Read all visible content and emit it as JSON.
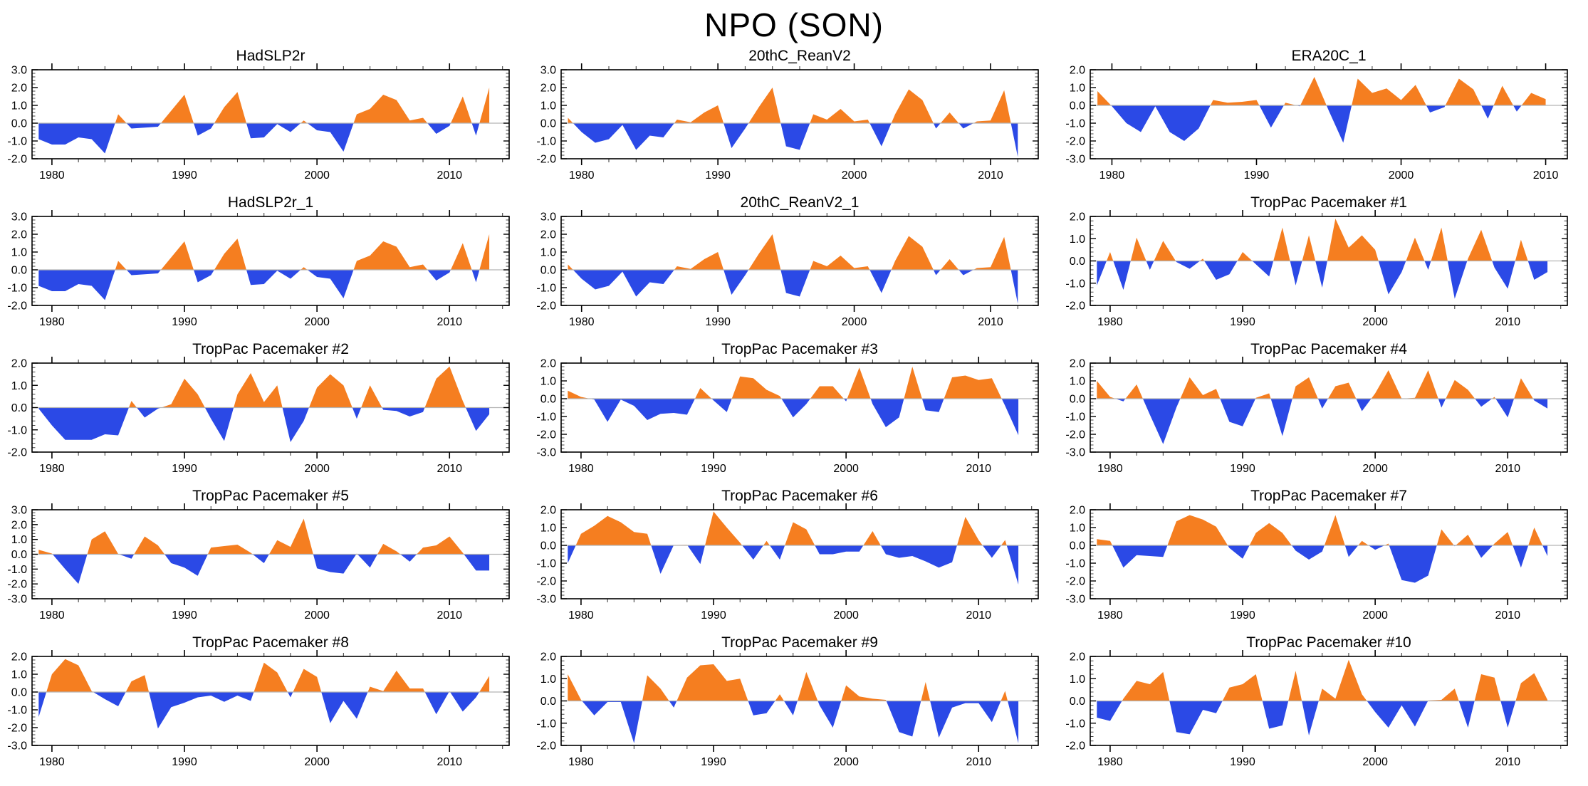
{
  "title": "NPO (SON)",
  "colors": {
    "positive_fill": "#F57E20",
    "negative_fill": "#2B49E6",
    "zero_line": "#B4B4B4",
    "frame": "#000000",
    "minor_tick": "#444444"
  },
  "chart_data": [
    {
      "type": "area",
      "title": "HadSLP2r",
      "xlabel": "",
      "ylabel": "",
      "x_start": 1979,
      "xlim": [
        1978.5,
        2014.5
      ],
      "ylim": [
        -2,
        3
      ],
      "yticks": [
        -2,
        -1,
        0,
        1,
        2,
        3
      ],
      "ytick_labels": [
        "-2.0",
        "-1.0",
        "0.0",
        "1.0",
        "2.0",
        "3.0"
      ],
      "xticks": [
        1980,
        1990,
        2000,
        2010
      ],
      "xtick_labels": [
        "1980",
        "1990",
        "2000",
        "2010"
      ],
      "xminor_interval": 2,
      "yminor_interval": 0.2,
      "grid": false,
      "values": [
        -0.9,
        -1.2,
        -1.2,
        -0.8,
        -0.9,
        -1.7,
        0.5,
        -0.3,
        -0.25,
        -0.2,
        0.7,
        1.6,
        -0.7,
        -0.3,
        0.9,
        1.75,
        -0.85,
        -0.8,
        -0.05,
        -0.5,
        0.15,
        -0.4,
        -0.5,
        -1.6,
        0.5,
        0.8,
        1.6,
        1.3,
        0.15,
        0.3,
        -0.6,
        -0.15,
        1.5,
        -0.7,
        2.0
      ]
    },
    {
      "type": "area",
      "title": "20thC_ReanV2",
      "xlabel": "",
      "ylabel": "",
      "x_start": 1979,
      "xlim": [
        1978.5,
        2013.5
      ],
      "ylim": [
        -2,
        3
      ],
      "yticks": [
        -2,
        -1,
        0,
        1,
        2,
        3
      ],
      "ytick_labels": [
        "-2.0",
        "-1.0",
        "0.0",
        "1.0",
        "2.0",
        "3.0"
      ],
      "xticks": [
        1980,
        1990,
        2000,
        2010
      ],
      "xtick_labels": [
        "1980",
        "1990",
        "2000",
        "2010"
      ],
      "xminor_interval": 2,
      "yminor_interval": 0.2,
      "grid": false,
      "values": [
        0.3,
        -0.5,
        -1.1,
        -0.9,
        -0.1,
        -1.5,
        -0.7,
        -0.8,
        0.2,
        0.05,
        0.6,
        1.0,
        -1.4,
        -0.3,
        0.9,
        2.0,
        -1.3,
        -1.5,
        0.5,
        0.2,
        0.8,
        0.1,
        0.2,
        -1.3,
        0.5,
        1.9,
        1.3,
        -0.3,
        0.6,
        -0.3,
        0.1,
        0.15,
        1.85,
        -1.9
      ]
    },
    {
      "type": "area",
      "title": "ERA20C_1",
      "xlabel": "",
      "ylabel": "",
      "x_start": 1979,
      "xlim": [
        1978.5,
        2011.5
      ],
      "ylim": [
        -3,
        2
      ],
      "yticks": [
        -3,
        -2,
        -1,
        0,
        1,
        2
      ],
      "ytick_labels": [
        "-3.0",
        "-2.0",
        "-1.0",
        "0.0",
        "1.0",
        "2.0"
      ],
      "xticks": [
        1980,
        1990,
        2000,
        2010
      ],
      "xtick_labels": [
        "1980",
        "1990",
        "2000",
        "2010"
      ],
      "xminor_interval": 2,
      "yminor_interval": 0.2,
      "grid": false,
      "values": [
        0.8,
        -0.05,
        -1.0,
        -1.5,
        -0.05,
        -1.5,
        -2.0,
        -1.3,
        0.3,
        0.15,
        0.2,
        0.3,
        -1.25,
        0.15,
        -0.05,
        1.6,
        -0.3,
        -2.1,
        1.5,
        0.7,
        0.95,
        0.3,
        1.15,
        -0.4,
        -0.1,
        1.5,
        0.9,
        -0.75,
        1.1,
        -0.35,
        0.7,
        0.35
      ]
    },
    {
      "type": "area",
      "title": "HadSLP2r_1",
      "xlabel": "",
      "ylabel": "",
      "x_start": 1979,
      "xlim": [
        1978.5,
        2014.5
      ],
      "ylim": [
        -2,
        3
      ],
      "yticks": [
        -2,
        -1,
        0,
        1,
        2,
        3
      ],
      "ytick_labels": [
        "-2.0",
        "-1.0",
        "0.0",
        "1.0",
        "2.0",
        "3.0"
      ],
      "xticks": [
        1980,
        1990,
        2000,
        2010
      ],
      "xtick_labels": [
        "1980",
        "1990",
        "2000",
        "2010"
      ],
      "xminor_interval": 2,
      "yminor_interval": 0.2,
      "grid": false,
      "values": [
        -0.9,
        -1.2,
        -1.2,
        -0.8,
        -0.9,
        -1.7,
        0.5,
        -0.3,
        -0.25,
        -0.2,
        0.7,
        1.6,
        -0.7,
        -0.3,
        0.9,
        1.75,
        -0.85,
        -0.8,
        -0.05,
        -0.5,
        0.15,
        -0.4,
        -0.5,
        -1.6,
        0.5,
        0.8,
        1.6,
        1.3,
        0.15,
        0.3,
        -0.6,
        -0.15,
        1.5,
        -0.7,
        2.0
      ]
    },
    {
      "type": "area",
      "title": "20thC_ReanV2_1",
      "xlabel": "",
      "ylabel": "",
      "x_start": 1979,
      "xlim": [
        1978.5,
        2013.5
      ],
      "ylim": [
        -2,
        3
      ],
      "yticks": [
        -2,
        -1,
        0,
        1,
        2,
        3
      ],
      "ytick_labels": [
        "-2.0",
        "-1.0",
        "0.0",
        "1.0",
        "2.0",
        "3.0"
      ],
      "xticks": [
        1980,
        1990,
        2000,
        2010
      ],
      "xtick_labels": [
        "1980",
        "1990",
        "2000",
        "2010"
      ],
      "xminor_interval": 2,
      "yminor_interval": 0.2,
      "grid": false,
      "values": [
        0.3,
        -0.5,
        -1.1,
        -0.9,
        -0.1,
        -1.5,
        -0.7,
        -0.8,
        0.2,
        0.05,
        0.6,
        1.0,
        -1.4,
        -0.3,
        0.9,
        2.0,
        -1.3,
        -1.5,
        0.5,
        0.2,
        0.8,
        0.1,
        0.2,
        -1.3,
        0.5,
        1.9,
        1.3,
        -0.3,
        0.6,
        -0.3,
        0.1,
        0.15,
        1.85,
        -1.9
      ]
    },
    {
      "type": "area",
      "title": "TropPac Pacemaker #1",
      "xlabel": "",
      "ylabel": "",
      "x_start": 1979,
      "xlim": [
        1978.5,
        2014.5
      ],
      "ylim": [
        -2,
        2
      ],
      "yticks": [
        -2,
        -1,
        0,
        1,
        2
      ],
      "ytick_labels": [
        "-2.0",
        "-1.0",
        "0.0",
        "1.0",
        "2.0"
      ],
      "xticks": [
        1980,
        1990,
        2000,
        2010
      ],
      "xtick_labels": [
        "1980",
        "1990",
        "2000",
        "2010"
      ],
      "xminor_interval": 2,
      "yminor_interval": 0.2,
      "grid": false,
      "values": [
        -1.1,
        0.4,
        -1.3,
        1.05,
        -0.4,
        0.9,
        -0.05,
        -0.35,
        0.1,
        -0.85,
        -0.6,
        0.4,
        -0.15,
        -0.7,
        1.5,
        -1.1,
        1.15,
        -1.2,
        1.9,
        0.6,
        1.15,
        0.5,
        -1.5,
        -0.5,
        1.05,
        -0.4,
        1.5,
        -1.7,
        0.1,
        1.4,
        -0.3,
        -1.25,
        0.95,
        -0.85,
        -0.5
      ]
    },
    {
      "type": "area",
      "title": "TropPac Pacemaker #2",
      "xlabel": "",
      "ylabel": "",
      "x_start": 1979,
      "xlim": [
        1978.5,
        2014.5
      ],
      "ylim": [
        -2,
        2
      ],
      "yticks": [
        -2,
        -1,
        0,
        1,
        2
      ],
      "ytick_labels": [
        "-2.0",
        "-1.0",
        "0.0",
        "1.0",
        "2.0"
      ],
      "xticks": [
        1980,
        1990,
        2000,
        2010
      ],
      "xtick_labels": [
        "1980",
        "1990",
        "2000",
        "2010"
      ],
      "xminor_interval": 2,
      "yminor_interval": 0.2,
      "grid": false,
      "values": [
        -0.05,
        -0.8,
        -1.45,
        -1.45,
        -1.45,
        -1.2,
        -1.25,
        0.3,
        -0.45,
        -0.05,
        0.15,
        1.3,
        0.6,
        -0.5,
        -1.5,
        0.6,
        1.55,
        0.25,
        1.0,
        -1.55,
        -0.6,
        0.9,
        1.5,
        1.0,
        -0.5,
        1.0,
        -0.1,
        -0.15,
        -0.4,
        -0.2,
        1.3,
        1.85,
        0.3,
        -1.05,
        -0.3
      ]
    },
    {
      "type": "area",
      "title": "TropPac Pacemaker #3",
      "xlabel": "",
      "ylabel": "",
      "x_start": 1979,
      "xlim": [
        1978.5,
        2014.5
      ],
      "ylim": [
        -3,
        2
      ],
      "yticks": [
        -3,
        -2,
        -1,
        0,
        1,
        2
      ],
      "ytick_labels": [
        "-3.0",
        "-2.0",
        "-1.0",
        "0.0",
        "1.0",
        "2.0"
      ],
      "xticks": [
        1980,
        1990,
        2000,
        2010
      ],
      "xtick_labels": [
        "1980",
        "1990",
        "2000",
        "2010"
      ],
      "xminor_interval": 2,
      "yminor_interval": 0.2,
      "grid": false,
      "values": [
        0.45,
        0.1,
        -0.05,
        -1.3,
        -0.05,
        -0.4,
        -1.2,
        -0.85,
        -0.8,
        -0.9,
        0.6,
        -0.1,
        -0.75,
        1.25,
        1.15,
        0.5,
        0.15,
        -1.05,
        -0.3,
        0.7,
        0.7,
        -0.15,
        1.75,
        -0.3,
        -1.6,
        -1.05,
        1.8,
        -0.65,
        -0.75,
        1.2,
        1.3,
        1.05,
        1.15,
        -0.4,
        -2.05
      ]
    },
    {
      "type": "area",
      "title": "TropPac Pacemaker #4",
      "xlabel": "",
      "ylabel": "",
      "x_start": 1979,
      "xlim": [
        1978.5,
        2014.5
      ],
      "ylim": [
        -3,
        2
      ],
      "yticks": [
        -3,
        -2,
        -1,
        0,
        1,
        2
      ],
      "ytick_labels": [
        "-3.0",
        "-2.0",
        "-1.0",
        "0.0",
        "1.0",
        "2.0"
      ],
      "xticks": [
        1980,
        1990,
        2000,
        2010
      ],
      "xtick_labels": [
        "1980",
        "1990",
        "2000",
        "2010"
      ],
      "xminor_interval": 2,
      "yminor_interval": 0.2,
      "grid": false,
      "values": [
        1.0,
        0.1,
        -0.15,
        0.8,
        -0.9,
        -2.55,
        -0.5,
        1.2,
        0.2,
        0.55,
        -1.3,
        -1.55,
        0.05,
        0.3,
        -2.1,
        0.7,
        1.2,
        -0.55,
        0.7,
        0.9,
        -0.7,
        0.3,
        1.6,
        0.0,
        0.05,
        1.6,
        -0.5,
        1.05,
        0.5,
        -0.45,
        0.1,
        -1.05,
        1.15,
        -0.1,
        -0.55
      ]
    },
    {
      "type": "area",
      "title": "TropPac Pacemaker #5",
      "xlabel": "",
      "ylabel": "",
      "x_start": 1979,
      "xlim": [
        1978.5,
        2014.5
      ],
      "ylim": [
        -3,
        3
      ],
      "yticks": [
        -3,
        -2,
        -1,
        0,
        1,
        2,
        3
      ],
      "ytick_labels": [
        "-3.0",
        "-2.0",
        "-1.0",
        "0.0",
        "1.0",
        "2.0",
        "3.0"
      ],
      "xticks": [
        1980,
        1990,
        2000,
        2010
      ],
      "xtick_labels": [
        "1980",
        "1990",
        "2000",
        "2010"
      ],
      "xminor_interval": 2,
      "yminor_interval": 0.2,
      "grid": false,
      "values": [
        0.3,
        0.05,
        -1.0,
        -2.0,
        1.0,
        1.55,
        0.02,
        -0.3,
        1.2,
        0.6,
        -0.6,
        -0.9,
        -1.45,
        0.45,
        0.55,
        0.65,
        0.1,
        -0.6,
        0.95,
        0.5,
        2.4,
        -0.95,
        -1.2,
        -1.3,
        0.05,
        -0.9,
        0.7,
        0.2,
        -0.5,
        0.45,
        0.6,
        1.2,
        0.1,
        -1.1,
        -1.1
      ]
    },
    {
      "type": "area",
      "title": "TropPac Pacemaker #6",
      "xlabel": "",
      "ylabel": "",
      "x_start": 1979,
      "xlim": [
        1978.5,
        2014.5
      ],
      "ylim": [
        -3,
        2
      ],
      "yticks": [
        -3,
        -2,
        -1,
        0,
        1,
        2
      ],
      "ytick_labels": [
        "-3.0",
        "-2.0",
        "-1.0",
        "0.0",
        "1.0",
        "2.0"
      ],
      "xticks": [
        1980,
        1990,
        2000,
        2010
      ],
      "xtick_labels": [
        "1980",
        "1990",
        "2000",
        "2010"
      ],
      "xminor_interval": 2,
      "yminor_interval": 0.2,
      "grid": false,
      "values": [
        -1.0,
        0.65,
        1.1,
        1.65,
        1.3,
        0.75,
        0.65,
        -1.6,
        0.02,
        0.03,
        -1.05,
        1.9,
        1.0,
        0.15,
        -0.8,
        0.25,
        -0.8,
        1.3,
        0.9,
        -0.5,
        -0.5,
        -0.35,
        -0.35,
        0.8,
        -0.5,
        -0.7,
        -0.6,
        -0.9,
        -1.25,
        -0.95,
        1.6,
        0.3,
        -0.7,
        0.3,
        -2.2
      ]
    },
    {
      "type": "area",
      "title": "TropPac Pacemaker #7",
      "xlabel": "",
      "ylabel": "",
      "x_start": 1979,
      "xlim": [
        1978.5,
        2014.5
      ],
      "ylim": [
        -3,
        2
      ],
      "yticks": [
        -3,
        -2,
        -1,
        0,
        1,
        2
      ],
      "ytick_labels": [
        "-3.0",
        "-2.0",
        "-1.0",
        "0.0",
        "1.0",
        "2.0"
      ],
      "xticks": [
        1980,
        1990,
        2000,
        2010
      ],
      "xtick_labels": [
        "1980",
        "1990",
        "2000",
        "2010"
      ],
      "xminor_interval": 2,
      "yminor_interval": 0.2,
      "grid": false,
      "values": [
        0.35,
        0.25,
        -1.25,
        -0.55,
        -0.6,
        -0.65,
        1.35,
        1.7,
        1.45,
        1.05,
        -0.15,
        -0.75,
        0.7,
        1.25,
        0.7,
        -0.3,
        -0.8,
        -0.35,
        1.7,
        -0.65,
        0.25,
        -0.25,
        0.1,
        -1.95,
        -2.1,
        -1.7,
        0.9,
        -0.05,
        0.6,
        -0.7,
        0.1,
        0.75,
        -1.25,
        1.0,
        -0.6
      ]
    },
    {
      "type": "area",
      "title": "TropPac Pacemaker #8",
      "xlabel": "",
      "ylabel": "",
      "x_start": 1979,
      "xlim": [
        1978.5,
        2014.5
      ],
      "ylim": [
        -3,
        2
      ],
      "yticks": [
        -3,
        -2,
        -1,
        0,
        1,
        2
      ],
      "ytick_labels": [
        "-3.0",
        "-2.0",
        "-1.0",
        "0.0",
        "1.0",
        "2.0"
      ],
      "xticks": [
        1980,
        1990,
        2000,
        2010
      ],
      "xtick_labels": [
        "1980",
        "1990",
        "2000",
        "2010"
      ],
      "xminor_interval": 2,
      "yminor_interval": 0.2,
      "grid": false,
      "values": [
        -1.4,
        1.0,
        1.85,
        1.5,
        0.05,
        -0.4,
        -0.8,
        0.6,
        0.95,
        -2.05,
        -0.85,
        -0.6,
        -0.3,
        -0.2,
        -0.55,
        -0.2,
        -0.5,
        1.65,
        1.1,
        -0.3,
        1.3,
        0.85,
        -1.75,
        -0.5,
        -1.5,
        0.3,
        0.05,
        1.2,
        0.2,
        0.2,
        -1.25,
        0.05,
        -1.1,
        -0.3,
        0.9
      ]
    },
    {
      "type": "area",
      "title": "TropPac Pacemaker #9",
      "xlabel": "",
      "ylabel": "",
      "x_start": 1979,
      "xlim": [
        1978.5,
        2014.5
      ],
      "ylim": [
        -2,
        2
      ],
      "yticks": [
        -2,
        -1,
        0,
        1,
        2
      ],
      "ytick_labels": [
        "-2.0",
        "-1.0",
        "0.0",
        "1.0",
        "2.0"
      ],
      "xticks": [
        1980,
        1990,
        2000,
        2010
      ],
      "xtick_labels": [
        "1980",
        "1990",
        "2000",
        "2010"
      ],
      "xminor_interval": 2,
      "yminor_interval": 0.2,
      "grid": false,
      "values": [
        1.2,
        0.05,
        -0.65,
        -0.05,
        -0.05,
        -1.9,
        1.15,
        0.55,
        -0.3,
        1.05,
        1.6,
        1.65,
        0.9,
        1.0,
        -0.65,
        -0.55,
        0.3,
        -0.65,
        1.3,
        -0.2,
        -1.2,
        0.7,
        0.2,
        0.1,
        0.05,
        -1.4,
        -1.6,
        0.85,
        -1.65,
        -0.3,
        -0.1,
        -0.1,
        -0.95,
        0.45,
        -1.9
      ]
    },
    {
      "type": "area",
      "title": "TropPac Pacemaker #10",
      "xlabel": "",
      "ylabel": "",
      "x_start": 1979,
      "xlim": [
        1978.5,
        2014.5
      ],
      "ylim": [
        -2,
        2
      ],
      "yticks": [
        -2,
        -1,
        0,
        1,
        2
      ],
      "ytick_labels": [
        "-2.0",
        "-1.0",
        "0.0",
        "1.0",
        "2.0"
      ],
      "xticks": [
        1980,
        1990,
        2000,
        2010
      ],
      "xtick_labels": [
        "1980",
        "1990",
        "2000",
        "2010"
      ],
      "xminor_interval": 2,
      "yminor_interval": 0.2,
      "grid": false,
      "values": [
        -0.75,
        -0.9,
        0.1,
        0.9,
        0.75,
        1.3,
        -1.4,
        -1.5,
        -0.4,
        -0.55,
        0.6,
        0.75,
        1.2,
        -1.25,
        -1.1,
        1.35,
        -1.55,
        0.55,
        0.1,
        1.85,
        0.3,
        -0.5,
        -1.2,
        -0.2,
        -1.15,
        0.02,
        0.05,
        0.55,
        -1.2,
        1.2,
        1.05,
        -1.2,
        0.8,
        1.25,
        0.05
      ]
    }
  ]
}
